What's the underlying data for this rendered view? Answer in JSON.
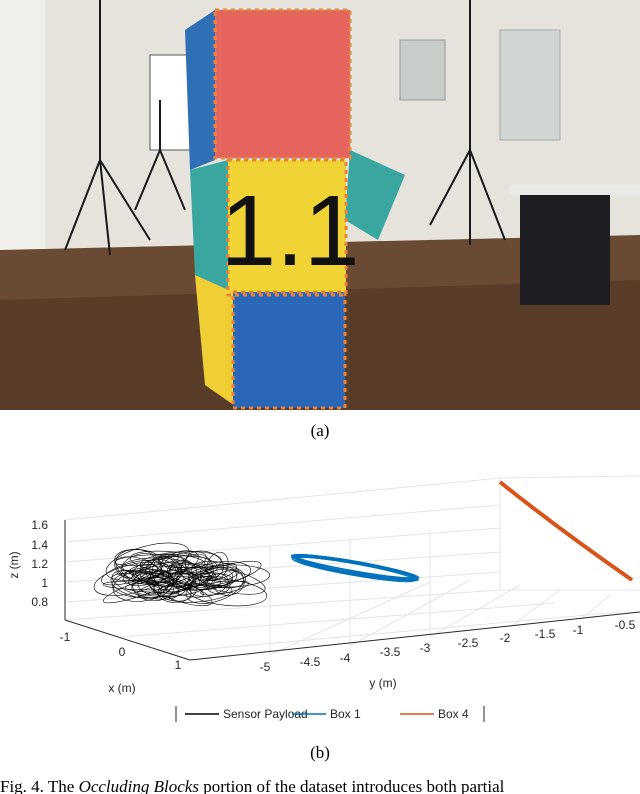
{
  "figure": {
    "panel_a": {
      "label": "(a)",
      "cube_label": "1.1"
    },
    "panel_b": {
      "label": "(b)",
      "z_axis": {
        "label": "z (m)",
        "ticks": [
          "1.6",
          "1.4",
          "1.2",
          "1",
          "0.8"
        ]
      },
      "x_axis": {
        "label": "x (m)",
        "ticks": [
          "-1",
          "0",
          "1"
        ]
      },
      "y_axis": {
        "label": "y (m)",
        "ticks": [
          "-5",
          "-4.5",
          "-4",
          "-3.5",
          "-3",
          "-2.5",
          "-2",
          "-1.5",
          "-1",
          "-0.5"
        ]
      },
      "legend": [
        {
          "name": "Sensor Payload",
          "color": "#000000"
        },
        {
          "name": "Box 1",
          "color": "#0072bd"
        },
        {
          "name": "Box 4",
          "color": "#d95319"
        }
      ]
    }
  },
  "caption": {
    "prefix": "Fig. 4.  The ",
    "emphasis": "Occluding Blocks",
    "rest": " portion of the dataset introduces both partial"
  }
}
